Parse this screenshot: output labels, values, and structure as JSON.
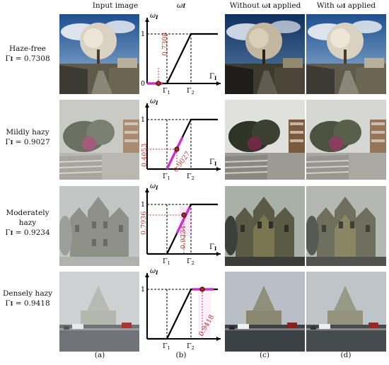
{
  "column_headers": {
    "input": "Input image",
    "omega": "ω",
    "omega_sub": "I",
    "without": "Without ω",
    "without_sub": "I",
    "without_tail": " applied",
    "with": "With ω",
    "with_sub": "I",
    "with_tail": " applied"
  },
  "rows": [
    {
      "label": "Haze-free",
      "gamma_text": "Γ",
      "gamma_sub": "I",
      "gamma_value": " = 0.7308",
      "marker_label": "0.7308"
    },
    {
      "label": "Mildly hazy",
      "gamma_text": "Γ",
      "gamma_sub": "I",
      "gamma_value": " = 0.9027",
      "marker_label": "0.9027",
      "y_label": "0.4053"
    },
    {
      "label": "Moderately hazy",
      "gamma_text": "Γ",
      "gamma_sub": "I",
      "gamma_value": " = 0.9234",
      "marker_label": "0.9234",
      "y_label": "0.7936"
    },
    {
      "label": "Densely hazy",
      "gamma_text": "Γ",
      "gamma_sub": "I",
      "gamma_value": " = 0.9418",
      "marker_label": "0.9418"
    }
  ],
  "plot_labels": {
    "y_axis": "ω",
    "y_axis_sub": "I",
    "x_axis": "Γ",
    "x_axis_sub": "I",
    "tick_one": "1",
    "tick_zero": "0",
    "gamma1": "Γ",
    "gamma1_sub": "1",
    "gamma2": "Γ",
    "gamma2_sub": "2"
  },
  "panel_labels": [
    "(a)",
    "(b)",
    "(c)",
    "(d)"
  ],
  "colors": {
    "marker": "#b22222",
    "highlight": "#cc33cc",
    "guide": "#c0392b"
  }
}
